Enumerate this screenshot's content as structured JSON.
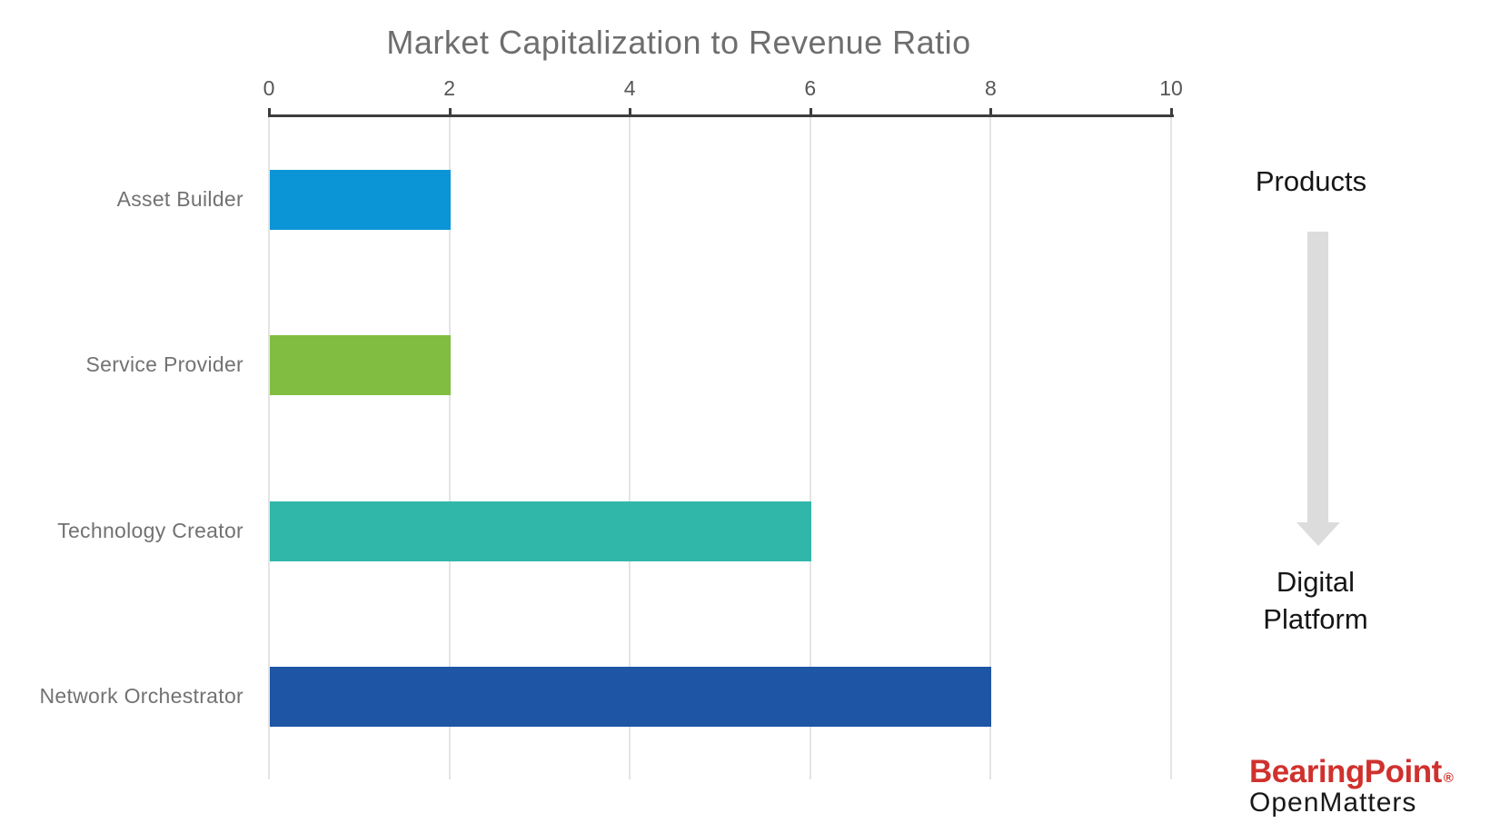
{
  "chart_data": {
    "type": "bar",
    "orientation": "horizontal",
    "title": "Market Capitalization to Revenue Ratio",
    "categories": [
      "Asset Builder",
      "Service Provider",
      "Technology Creator",
      "Network Orchestrator"
    ],
    "values": [
      2,
      2,
      6,
      8
    ],
    "bar_colors": [
      "#0B95D6",
      "#81BD41",
      "#31B7A9",
      "#1E55A4"
    ],
    "xlabel": "",
    "ylabel": "",
    "xlim": [
      0,
      10
    ],
    "x_ticks": [
      "0",
      "2",
      "4",
      "6",
      "8",
      "10"
    ],
    "axis_position": "top",
    "grid": true,
    "legend_position": "none"
  },
  "side_panel": {
    "top_label": "Products",
    "arrow_icon": "down-arrow",
    "bottom_label": "Digital\nPlatform"
  },
  "branding": {
    "logo_text": "BearingPoint",
    "logo_mark": "®",
    "logo_color": "#D0312D",
    "sub_logo_text": "OpenMatters"
  }
}
